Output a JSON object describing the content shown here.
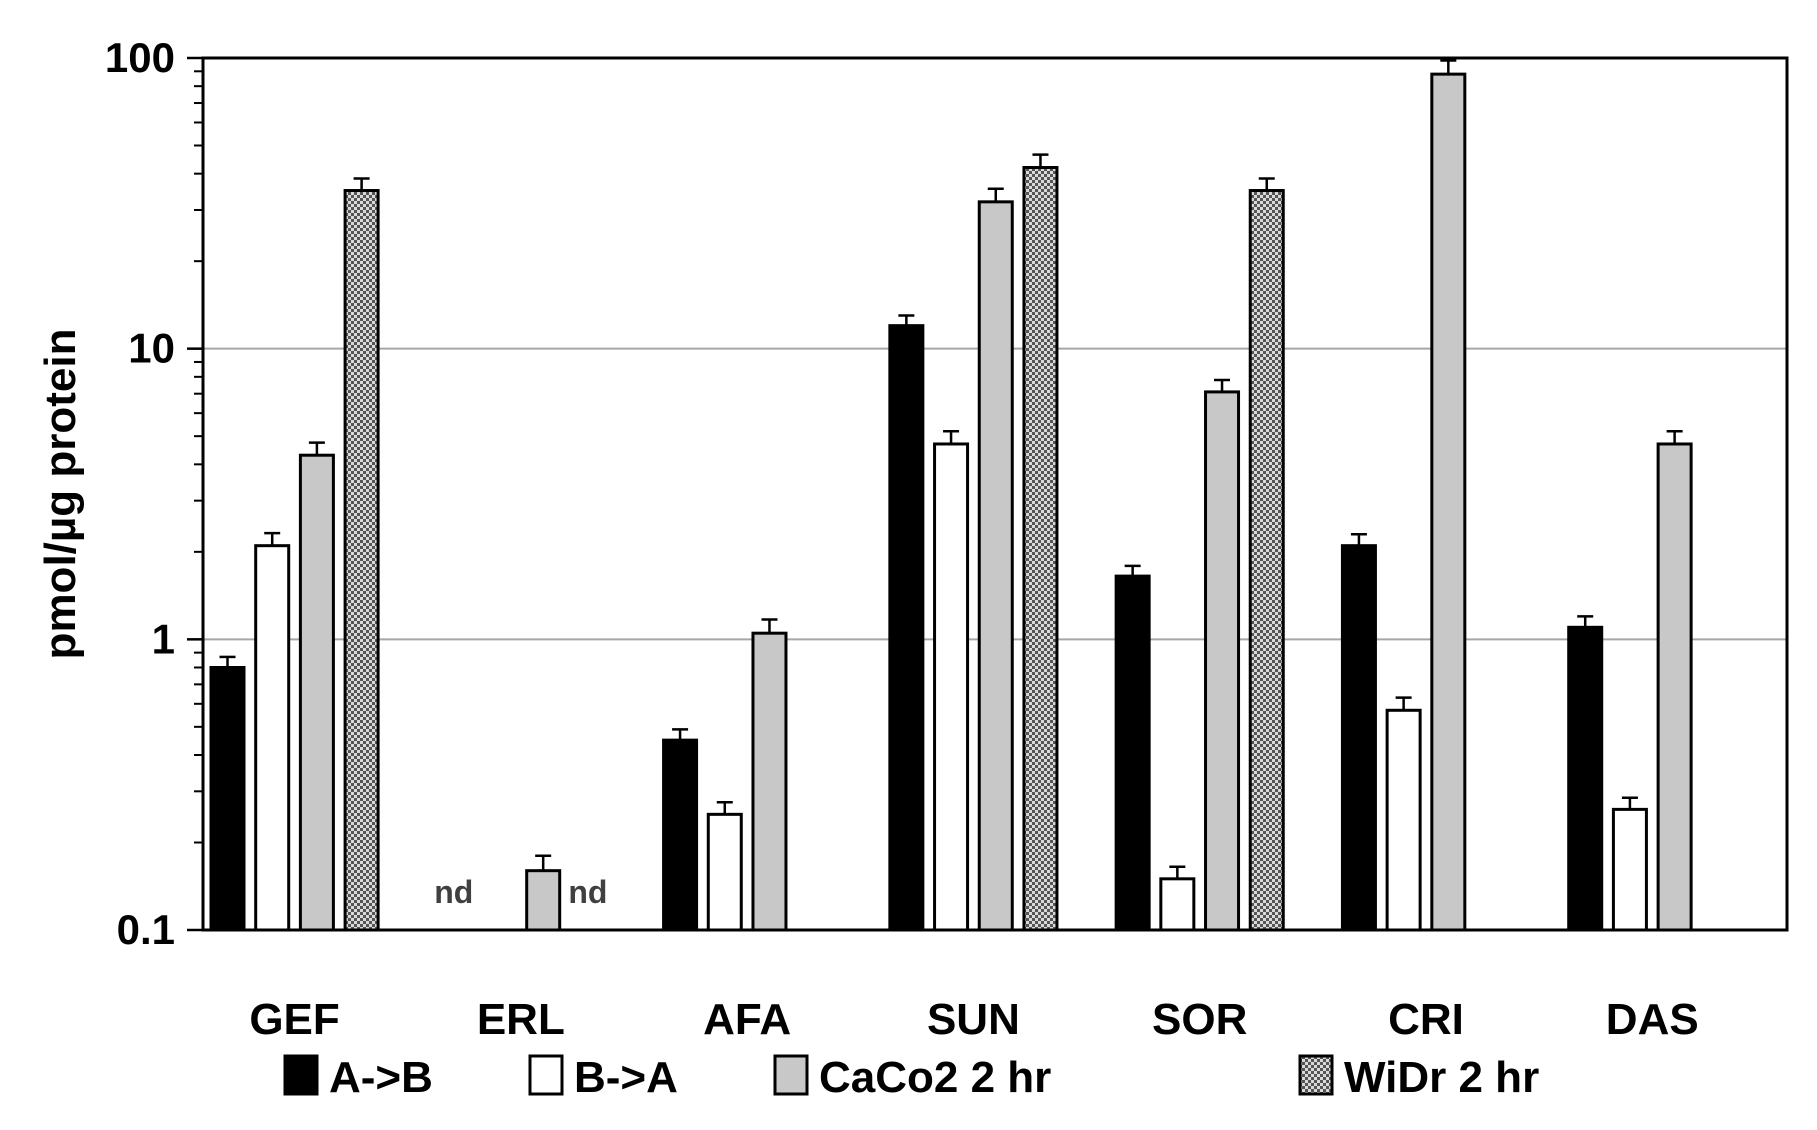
{
  "chart_data": {
    "type": "bar",
    "ylabel": "pmol/µg protein",
    "yscale": "log",
    "ylim": [
      0.1,
      100
    ],
    "y_tick_labels": [
      "100",
      "10",
      "1",
      "0.1"
    ],
    "y_ticks": [
      100,
      10,
      1,
      0.1
    ],
    "grid": "horizontal major",
    "legend_position": "bottom",
    "categories": [
      "GEF",
      "ERL",
      "AFA",
      "SUN",
      "SOR",
      "CRI",
      "DAS"
    ],
    "series": [
      {
        "name": "A->B",
        "color": "#000000",
        "pattern": "solid",
        "values": [
          0.8,
          null,
          0.45,
          12,
          1.65,
          2.1,
          1.1
        ],
        "errors": [
          0.07,
          null,
          0.04,
          1.0,
          0.14,
          0.2,
          0.1
        ]
      },
      {
        "name": "B->A",
        "color": "#ffffff",
        "pattern": "solid",
        "values": [
          2.1,
          null,
          0.25,
          4.7,
          0.15,
          0.57,
          0.26
        ],
        "errors": [
          0.22,
          null,
          0.025,
          0.5,
          0.015,
          0.06,
          0.025
        ]
      },
      {
        "name": "CaCo2 2 hr",
        "color": "#c8c8c8",
        "pattern": "solid",
        "values": [
          4.3,
          0.16,
          1.05,
          32,
          7.1,
          88,
          4.7
        ],
        "errors": [
          0.45,
          0.02,
          0.12,
          3.5,
          0.7,
          10,
          0.5
        ]
      },
      {
        "name": "WiDr 2 hr",
        "color": "#a8a8a8",
        "pattern": "dotted",
        "values": [
          35,
          null,
          null,
          42,
          35,
          null,
          null
        ],
        "errors": [
          3.5,
          null,
          null,
          4.5,
          3.5,
          null,
          null
        ]
      }
    ],
    "annotations": [
      {
        "category": "ERL",
        "series": "A->B",
        "text": "nd"
      },
      {
        "category": "ERL",
        "series": "WiDr 2 hr",
        "text": "nd"
      }
    ]
  }
}
